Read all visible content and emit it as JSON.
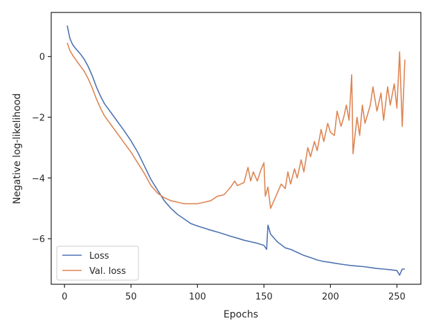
{
  "chart_data": {
    "type": "line",
    "title": "",
    "xlabel": "Epochs",
    "ylabel": "Negative log-likelihood",
    "xlim": [
      -10,
      268
    ],
    "ylim": [
      -7.5,
      1.45
    ],
    "xticks": [
      0,
      50,
      100,
      150,
      200,
      250
    ],
    "yticks": [
      -6,
      -4,
      -2,
      0
    ],
    "grid": false,
    "legend_position": "lower-left",
    "series": [
      {
        "name": "Loss",
        "color": "#4c72b0",
        "x": [
          2,
          4,
          6,
          8,
          10,
          12,
          15,
          18,
          21,
          24,
          27,
          30,
          35,
          40,
          45,
          50,
          55,
          60,
          65,
          70,
          75,
          80,
          85,
          90,
          95,
          100,
          105,
          110,
          115,
          120,
          125,
          130,
          135,
          140,
          145,
          150,
          152,
          153,
          155,
          158,
          160,
          163,
          166,
          170,
          175,
          180,
          185,
          190,
          195,
          200,
          205,
          210,
          215,
          220,
          225,
          230,
          235,
          240,
          245,
          250,
          252,
          254,
          256
        ],
        "values": [
          1.02,
          0.6,
          0.4,
          0.28,
          0.18,
          0.08,
          -0.1,
          -0.35,
          -0.65,
          -1.0,
          -1.3,
          -1.55,
          -1.85,
          -2.15,
          -2.45,
          -2.78,
          -3.15,
          -3.6,
          -4.05,
          -4.4,
          -4.75,
          -5.0,
          -5.2,
          -5.35,
          -5.5,
          -5.58,
          -5.65,
          -5.72,
          -5.78,
          -5.85,
          -5.92,
          -5.98,
          -6.05,
          -6.1,
          -6.15,
          -6.22,
          -6.35,
          -5.55,
          -5.85,
          -6.0,
          -6.1,
          -6.2,
          -6.3,
          -6.35,
          -6.45,
          -6.55,
          -6.62,
          -6.7,
          -6.75,
          -6.78,
          -6.82,
          -6.85,
          -6.88,
          -6.9,
          -6.92,
          -6.95,
          -6.98,
          -7.0,
          -7.02,
          -7.05,
          -7.2,
          -7.0,
          -7.0
        ]
      },
      {
        "name": "Val. loss",
        "color": "#dd8452",
        "x": [
          2,
          4,
          6,
          8,
          10,
          12,
          15,
          18,
          21,
          24,
          27,
          30,
          35,
          40,
          45,
          50,
          55,
          60,
          65,
          70,
          75,
          80,
          85,
          90,
          95,
          100,
          105,
          110,
          115,
          120,
          125,
          128,
          130,
          135,
          138,
          140,
          142,
          145,
          148,
          150,
          151,
          153,
          155,
          158,
          160,
          163,
          166,
          168,
          170,
          173,
          175,
          178,
          180,
          183,
          185,
          188,
          190,
          193,
          195,
          198,
          200,
          203,
          205,
          208,
          210,
          212,
          214,
          216,
          217,
          220,
          222,
          224,
          226,
          230,
          232,
          235,
          238,
          240,
          243,
          245,
          248,
          250,
          252,
          254,
          256
        ],
        "values": [
          0.45,
          0.2,
          0.05,
          -0.08,
          -0.2,
          -0.32,
          -0.5,
          -0.75,
          -1.05,
          -1.4,
          -1.7,
          -1.95,
          -2.25,
          -2.55,
          -2.85,
          -3.15,
          -3.5,
          -3.85,
          -4.25,
          -4.5,
          -4.65,
          -4.75,
          -4.8,
          -4.85,
          -4.85,
          -4.85,
          -4.8,
          -4.75,
          -4.6,
          -4.55,
          -4.3,
          -4.1,
          -4.25,
          -4.15,
          -3.65,
          -4.1,
          -3.8,
          -4.1,
          -3.7,
          -3.5,
          -4.6,
          -4.3,
          -5.0,
          -4.7,
          -4.5,
          -4.2,
          -4.35,
          -3.8,
          -4.2,
          -3.7,
          -4.0,
          -3.4,
          -3.8,
          -3.0,
          -3.3,
          -2.8,
          -3.1,
          -2.4,
          -2.8,
          -2.2,
          -2.5,
          -2.6,
          -1.8,
          -2.3,
          -2.0,
          -1.6,
          -2.1,
          -0.6,
          -3.2,
          -2.0,
          -2.6,
          -1.6,
          -2.2,
          -1.6,
          -1.0,
          -1.8,
          -1.2,
          -2.1,
          -1.0,
          -1.6,
          -0.9,
          -1.7,
          0.15,
          -2.3,
          -0.1
        ]
      }
    ]
  }
}
